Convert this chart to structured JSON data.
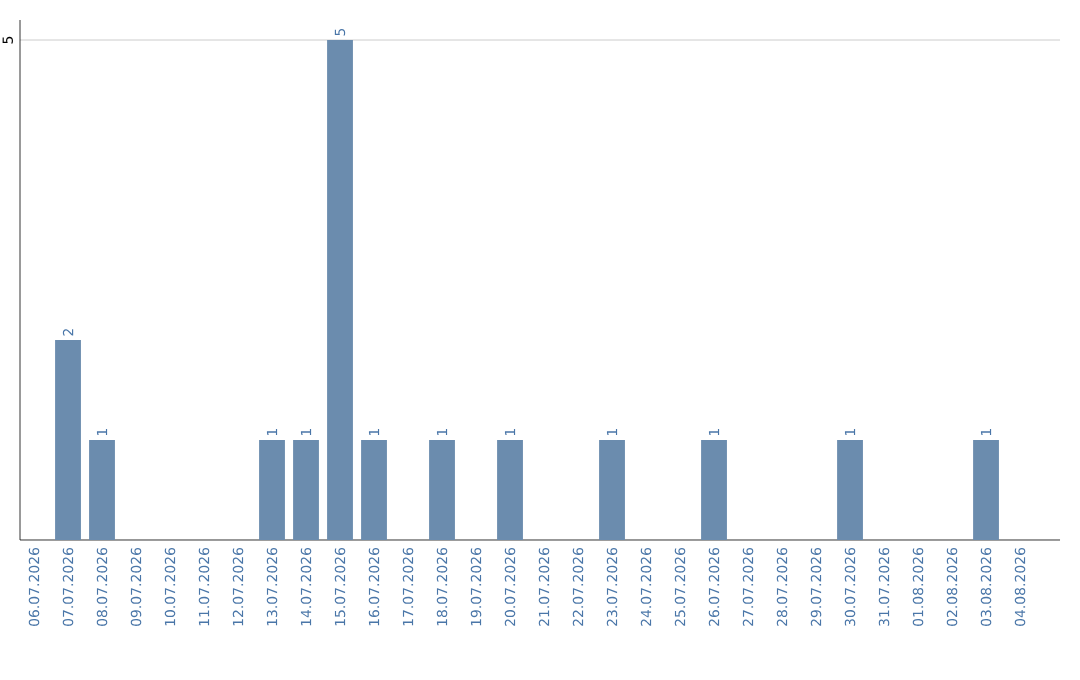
{
  "chart_data": {
    "type": "bar",
    "categories": [
      "06.07.2026",
      "07.07.2026",
      "08.07.2026",
      "09.07.2026",
      "10.07.2026",
      "11.07.2026",
      "12.07.2026",
      "13.07.2026",
      "14.07.2026",
      "15.07.2026",
      "16.07.2026",
      "17.07.2026",
      "18.07.2026",
      "19.07.2026",
      "20.07.2026",
      "21.07.2026",
      "22.07.2026",
      "23.07.2026",
      "24.07.2026",
      "25.07.2026",
      "26.07.2026",
      "27.07.2026",
      "28.07.2026",
      "29.07.2026",
      "30.07.2026",
      "31.07.2026",
      "01.08.2026",
      "02.08.2026",
      "03.08.2026",
      "04.08.2026"
    ],
    "values": [
      0,
      2,
      1,
      0,
      0,
      0,
      0,
      1,
      1,
      5,
      1,
      0,
      1,
      0,
      1,
      0,
      0,
      1,
      0,
      0,
      1,
      0,
      0,
      0,
      1,
      0,
      0,
      0,
      1,
      0
    ],
    "value_labels": [
      null,
      "2",
      "1",
      null,
      null,
      null,
      null,
      "1",
      "1",
      "5",
      "1",
      null,
      "1",
      null,
      "1",
      null,
      null,
      "1",
      null,
      null,
      "1",
      null,
      null,
      null,
      "1",
      null,
      null,
      null,
      "1",
      null
    ],
    "color": "#6b8cae",
    "ylim": [
      0,
      5.2
    ],
    "yticks": [
      5
    ],
    "grid": "y"
  }
}
